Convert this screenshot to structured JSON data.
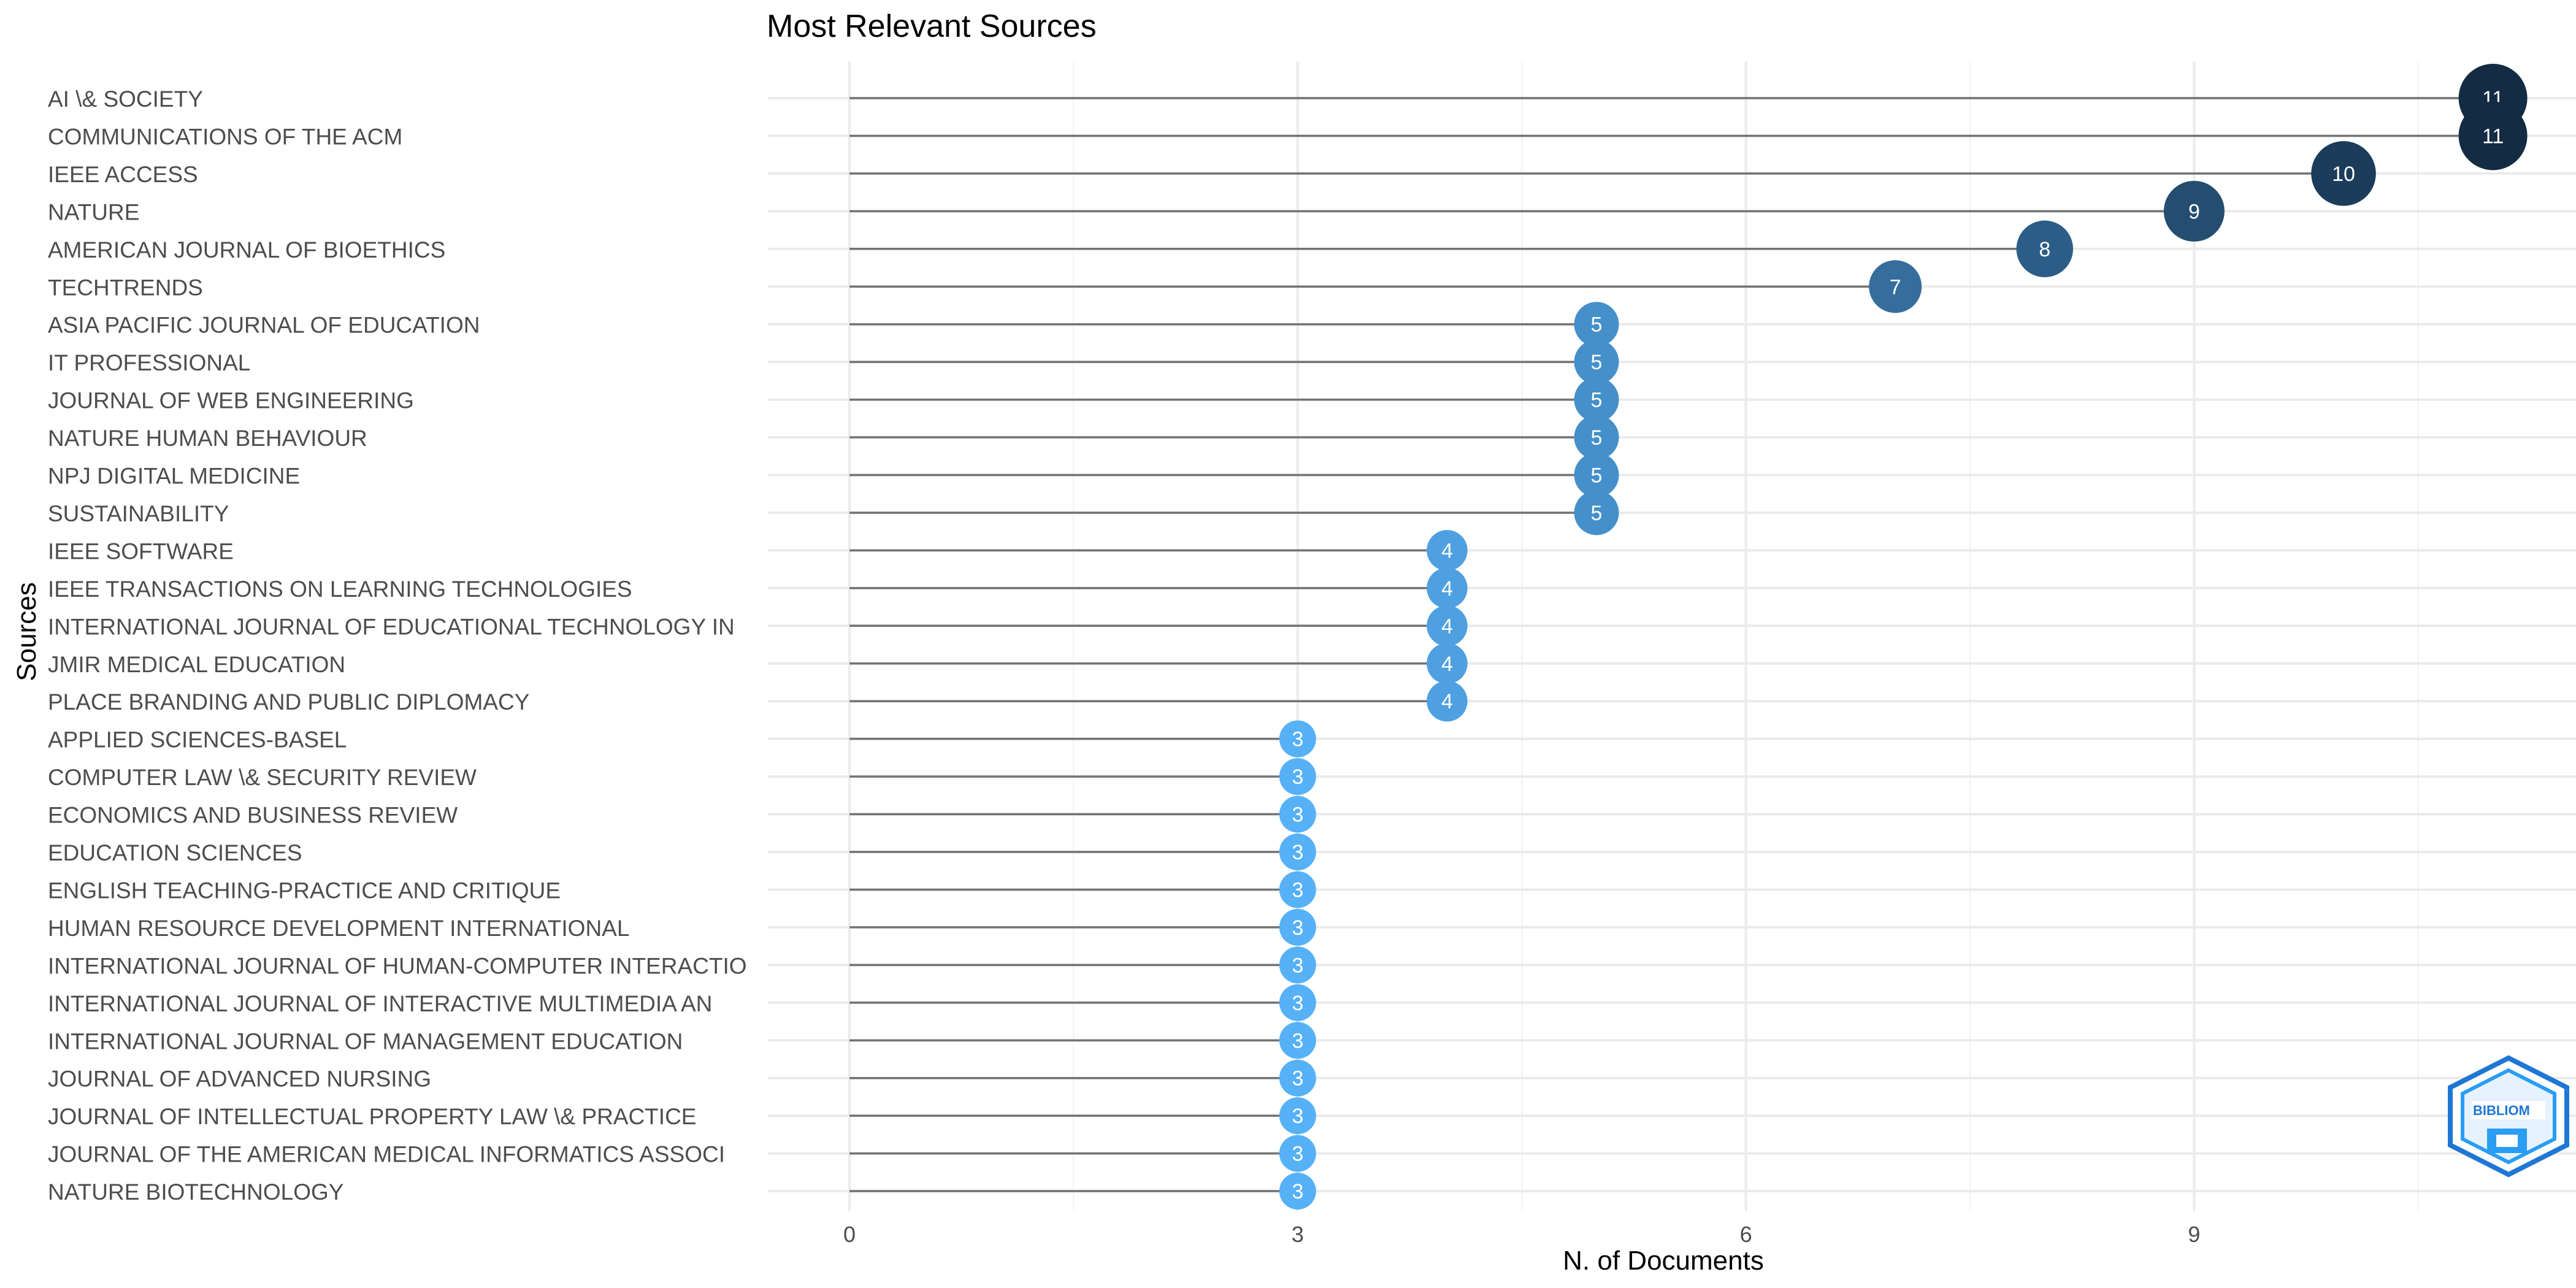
{
  "chart_data": {
    "type": "lollipop",
    "title": "Most Relevant Sources",
    "xlabel": "N. of Documents",
    "ylabel": "Sources",
    "xlim": [
      0,
      11.5
    ],
    "xticks": [
      0,
      3,
      6,
      9
    ],
    "grid": true,
    "categories": [
      "AI \\& SOCIETY",
      "COMMUNICATIONS OF THE ACM",
      "IEEE ACCESS",
      "NATURE",
      "AMERICAN JOURNAL OF BIOETHICS",
      "TECHTRENDS",
      "ASIA PACIFIC JOURNAL OF EDUCATION",
      "IT PROFESSIONAL",
      "JOURNAL OF WEB ENGINEERING",
      "NATURE HUMAN BEHAVIOUR",
      "NPJ DIGITAL MEDICINE",
      "SUSTAINABILITY",
      "IEEE SOFTWARE",
      "IEEE TRANSACTIONS ON LEARNING TECHNOLOGIES",
      "INTERNATIONAL JOURNAL OF EDUCATIONAL TECHNOLOGY IN",
      "JMIR MEDICAL EDUCATION",
      "PLACE BRANDING AND PUBLIC DIPLOMACY",
      "APPLIED SCIENCES-BASEL",
      "COMPUTER LAW \\& SECURITY REVIEW",
      "ECONOMICS AND BUSINESS REVIEW",
      "EDUCATION SCIENCES",
      "ENGLISH TEACHING-PRACTICE AND CRITIQUE",
      "HUMAN RESOURCE DEVELOPMENT INTERNATIONAL",
      "INTERNATIONAL JOURNAL OF HUMAN-COMPUTER INTERACTIO",
      "INTERNATIONAL JOURNAL OF INTERACTIVE MULTIMEDIA AN",
      "INTERNATIONAL JOURNAL OF MANAGEMENT EDUCATION",
      "JOURNAL OF ADVANCED NURSING",
      "JOURNAL OF INTELLECTUAL PROPERTY LAW \\& PRACTICE",
      "JOURNAL OF THE AMERICAN MEDICAL INFORMATICS ASSOCI",
      "NATURE BIOTECHNOLOGY"
    ],
    "values": [
      11,
      11,
      10,
      9,
      8,
      7,
      5,
      5,
      5,
      5,
      5,
      5,
      4,
      4,
      4,
      4,
      4,
      3,
      3,
      3,
      3,
      3,
      3,
      3,
      3,
      3,
      3,
      3,
      3,
      3
    ],
    "colors": {
      "low": "#56B1F7",
      "high": "#132B43",
      "stem": "#737373",
      "grid_major": "#ebebeb",
      "grid_minor": "#f2f2f2",
      "label": "#4d4d4d"
    }
  },
  "logo": {
    "text": "BIBLIOM",
    "color": "#1f77d4"
  }
}
